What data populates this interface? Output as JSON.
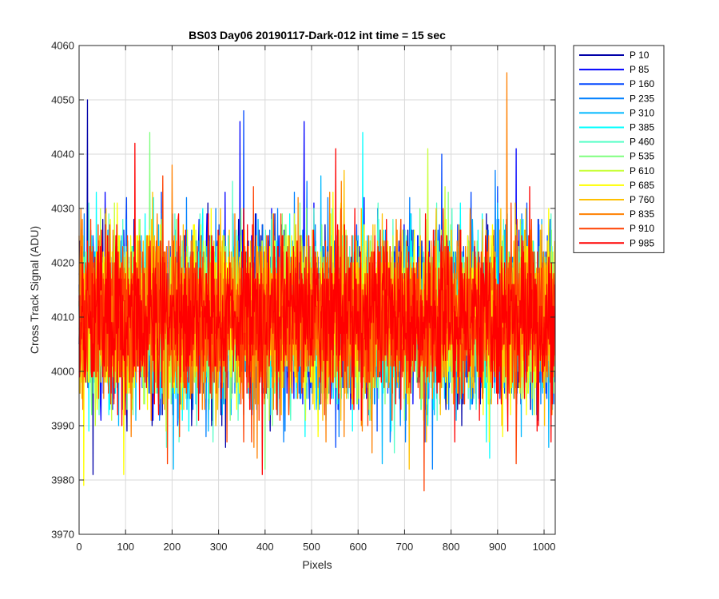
{
  "chart_data": {
    "type": "line",
    "title": "BS03 Day06 20190117-Dark-012 int time = 15 sec",
    "xlabel": "Pixels",
    "ylabel": "Cross Track Signal (ADU)",
    "xlim": [
      0,
      1024
    ],
    "ylim": [
      3970,
      4060
    ],
    "xticks": [
      0,
      100,
      200,
      300,
      400,
      500,
      600,
      700,
      800,
      900,
      1000
    ],
    "yticks": [
      3970,
      3980,
      3990,
      4000,
      4010,
      4020,
      4030,
      4040,
      4050,
      4060
    ],
    "xtick_labels": [
      "0",
      "100",
      "200",
      "300",
      "400",
      "500",
      "600",
      "700",
      "800",
      "900",
      "1000"
    ],
    "ytick_labels": [
      "3970",
      "3980",
      "3990",
      "4000",
      "4010",
      "4020",
      "4030",
      "4040",
      "4050",
      "4060"
    ],
    "grid": true,
    "legend_position": "outside-top-right",
    "noise_model": {
      "mean": 4010,
      "sigma": 7.5,
      "min_clip": 3978,
      "max_clip": 4055
    },
    "series": [
      {
        "name": "P 10",
        "color": "#0000a8",
        "spikes": [
          [
            18,
            4050
          ],
          [
            30,
            3981
          ]
        ]
      },
      {
        "name": "P 85",
        "color": "#0000ff",
        "spikes": [
          [
            346,
            4046
          ],
          [
            484,
            4046
          ],
          [
            940,
            4041
          ]
        ]
      },
      {
        "name": "P 160",
        "color": "#0047ff",
        "spikes": [
          [
            354,
            4048
          ],
          [
            900,
            4034
          ]
        ]
      },
      {
        "name": "P 235",
        "color": "#0080ff",
        "spikes": [
          [
            490,
            4035
          ],
          [
            760,
            3982
          ]
        ]
      },
      {
        "name": "P 310",
        "color": "#00b8ff",
        "spikes": [
          [
            520,
            4036
          ]
        ]
      },
      {
        "name": "P 385",
        "color": "#00ffff",
        "spikes": [
          [
            610,
            4044
          ]
        ]
      },
      {
        "name": "P 460",
        "color": "#57ffc8",
        "spikes": [
          [
            330,
            4035
          ]
        ]
      },
      {
        "name": "P 535",
        "color": "#7fff7f",
        "spikes": [
          [
            152,
            4044
          ],
          [
            400,
            3982
          ]
        ]
      },
      {
        "name": "P 610",
        "color": "#c8ff39",
        "spikes": [
          [
            750,
            4041
          ]
        ]
      },
      {
        "name": "P 685",
        "color": "#ffff00",
        "spikes": [
          [
            10,
            3979
          ],
          [
            96,
            3981
          ]
        ]
      },
      {
        "name": "P 760",
        "color": "#ffc000",
        "spikes": [
          [
            710,
            3982
          ]
        ]
      },
      {
        "name": "P 835",
        "color": "#ff8000",
        "spikes": [
          [
            920,
            4055
          ],
          [
            200,
            4038
          ]
        ]
      },
      {
        "name": "P 910",
        "color": "#ff4000",
        "spikes": [
          [
            742,
            3978
          ],
          [
            180,
            4036
          ]
        ]
      },
      {
        "name": "P 985",
        "color": "#ff0000",
        "spikes": [
          [
            120,
            4042
          ],
          [
            552,
            4041
          ]
        ]
      }
    ]
  }
}
